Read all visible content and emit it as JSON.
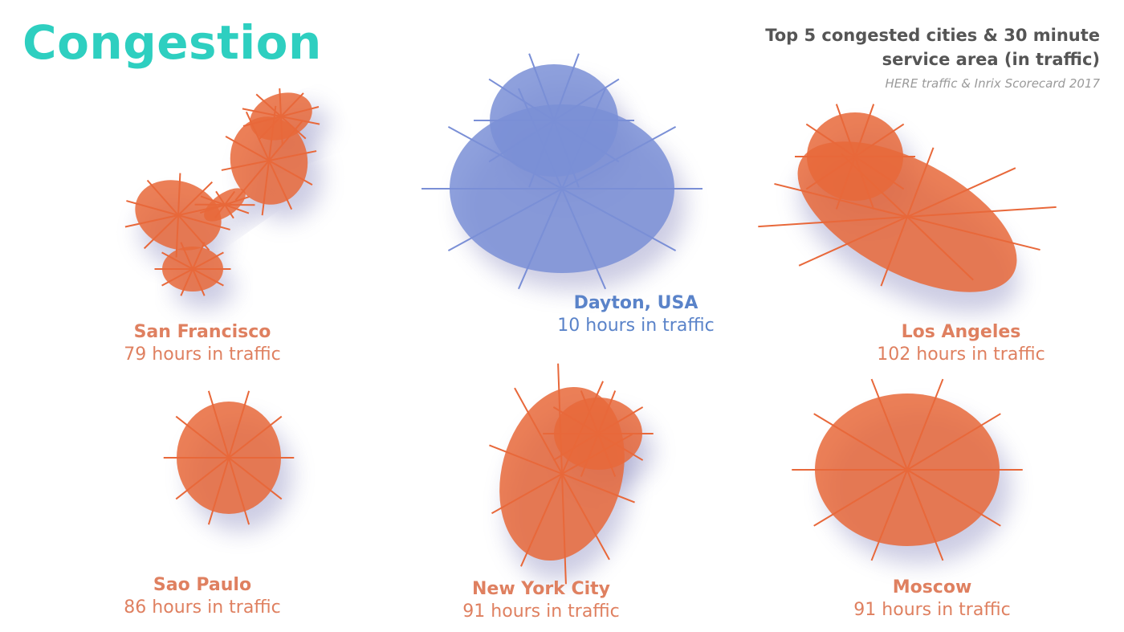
{
  "header": {
    "title": "Congestion",
    "subtitle_line1": "Top 5 congested cities & 30 minute",
    "subtitle_line2": "service area (in traffic)",
    "source": "HERE traffic & Inrix Scorecard 2017"
  },
  "colors": {
    "title": "#2ecfc0",
    "subtitle": "#555555",
    "congested": "#e8683a",
    "congested_label": "#df8060",
    "reference": "#7a8fd6",
    "reference_label": "#5a83c9",
    "shadow": "#6f6fb0"
  },
  "cities": [
    {
      "id": "san-francisco",
      "name": "San Francisco",
      "hours": "79 hours in traffic",
      "hours_value": 79,
      "group": "congested"
    },
    {
      "id": "dayton",
      "name": "Dayton, USA",
      "hours": "10 hours in traffic",
      "hours_value": 10,
      "group": "reference"
    },
    {
      "id": "los-angeles",
      "name": "Los Angeles",
      "hours": "102 hours in traffic",
      "hours_value": 102,
      "group": "congested"
    },
    {
      "id": "sao-paulo",
      "name": "Sao Paulo",
      "hours": "86 hours in traffic",
      "hours_value": 86,
      "group": "congested"
    },
    {
      "id": "new-york-city",
      "name": "New York City",
      "hours": "91 hours in traffic",
      "hours_value": 91,
      "group": "congested"
    },
    {
      "id": "moscow",
      "name": "Moscow",
      "hours": "91 hours in traffic",
      "hours_value": 91,
      "group": "congested"
    }
  ]
}
